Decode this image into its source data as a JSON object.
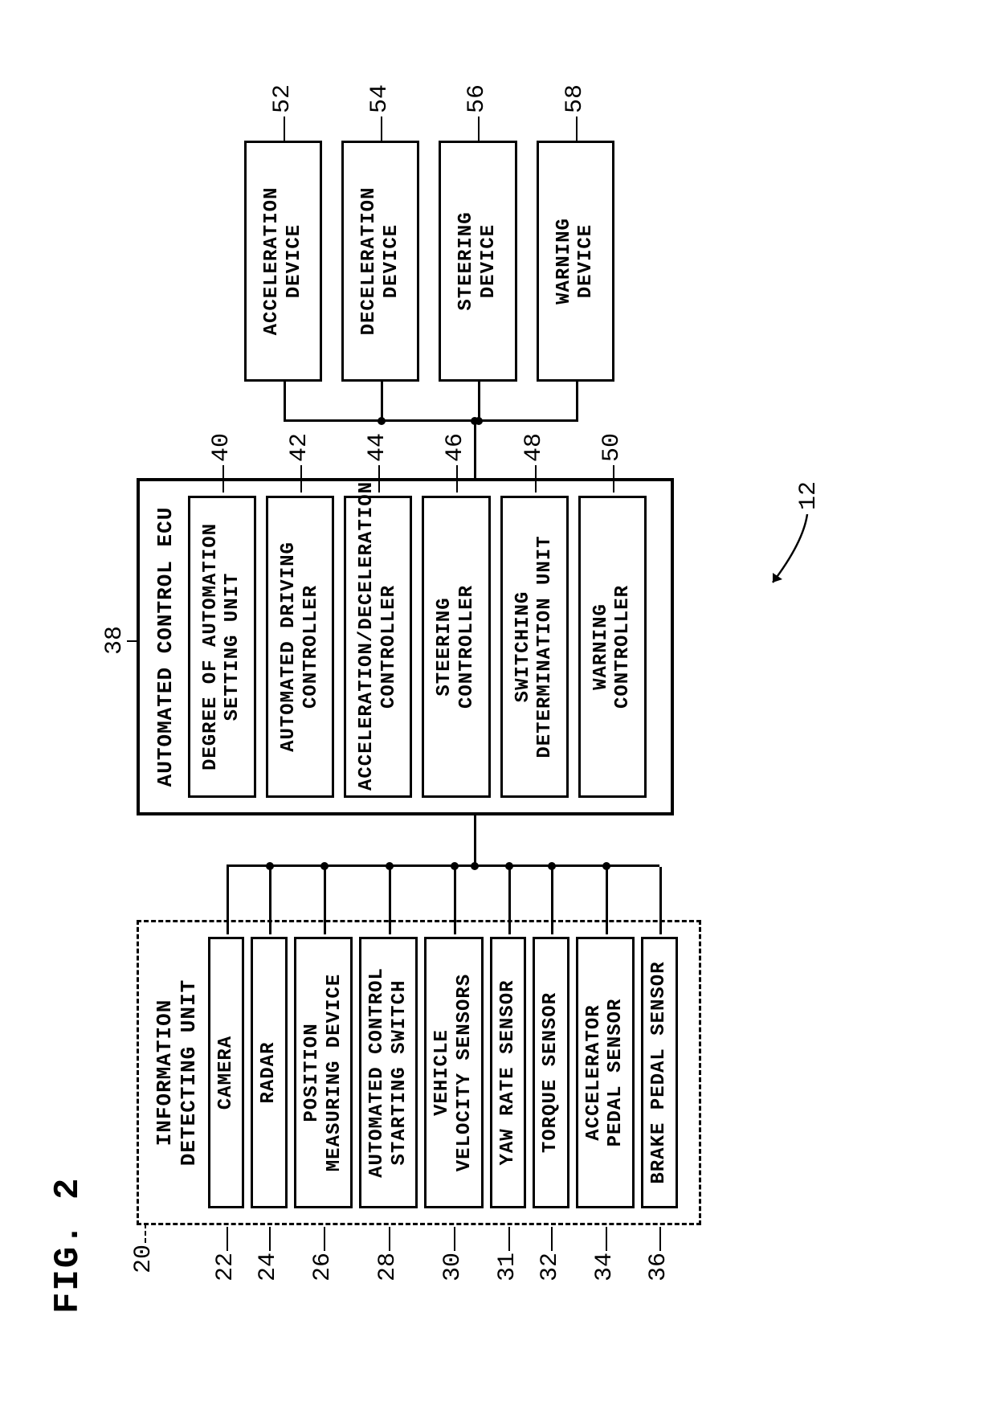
{
  "figure_label": "FIG. 2",
  "system_ref": "12",
  "detecting_unit": {
    "title": "INFORMATION\nDETECTING UNIT",
    "ref": "20",
    "blocks": [
      {
        "ref": "22",
        "label": "CAMERA"
      },
      {
        "ref": "24",
        "label": "RADAR"
      },
      {
        "ref": "26",
        "label": "POSITION\nMEASURING DEVICE"
      },
      {
        "ref": "28",
        "label": "AUTOMATED CONTROL\nSTARTING SWITCH"
      },
      {
        "ref": "30",
        "label": "VEHICLE\nVELOCITY SENSORS"
      },
      {
        "ref": "31",
        "label": "YAW RATE SENSOR"
      },
      {
        "ref": "32",
        "label": "TORQUE SENSOR"
      },
      {
        "ref": "34",
        "label": "ACCELERATOR\nPEDAL SENSOR"
      },
      {
        "ref": "36",
        "label": "BRAKE PEDAL SENSOR"
      }
    ]
  },
  "ecu": {
    "title": "AUTOMATED CONTROL ECU",
    "ref": "38",
    "blocks": [
      {
        "ref": "40",
        "label": "DEGREE OF AUTOMATION\nSETTING UNIT"
      },
      {
        "ref": "42",
        "label": "AUTOMATED DRIVING\nCONTROLLER"
      },
      {
        "ref": "44",
        "label": "ACCELERATION/DECELERATION\nCONTROLLER"
      },
      {
        "ref": "46",
        "label": "STEERING\nCONTROLLER"
      },
      {
        "ref": "48",
        "label": "SWITCHING\nDETERMINATION UNIT"
      },
      {
        "ref": "50",
        "label": "WARNING\nCONTROLLER"
      }
    ]
  },
  "outputs": [
    {
      "ref": "52",
      "label": "ACCELERATION\nDEVICE"
    },
    {
      "ref": "54",
      "label": "DECELERATION\nDEVICE"
    },
    {
      "ref": "56",
      "label": "STEERING\nDEVICE"
    },
    {
      "ref": "58",
      "label": "WARNING\nDEVICE"
    }
  ],
  "style": {
    "line_color": "#000000",
    "background": "#ffffff",
    "font_family": "Courier New",
    "rotated_deg": -90
  }
}
